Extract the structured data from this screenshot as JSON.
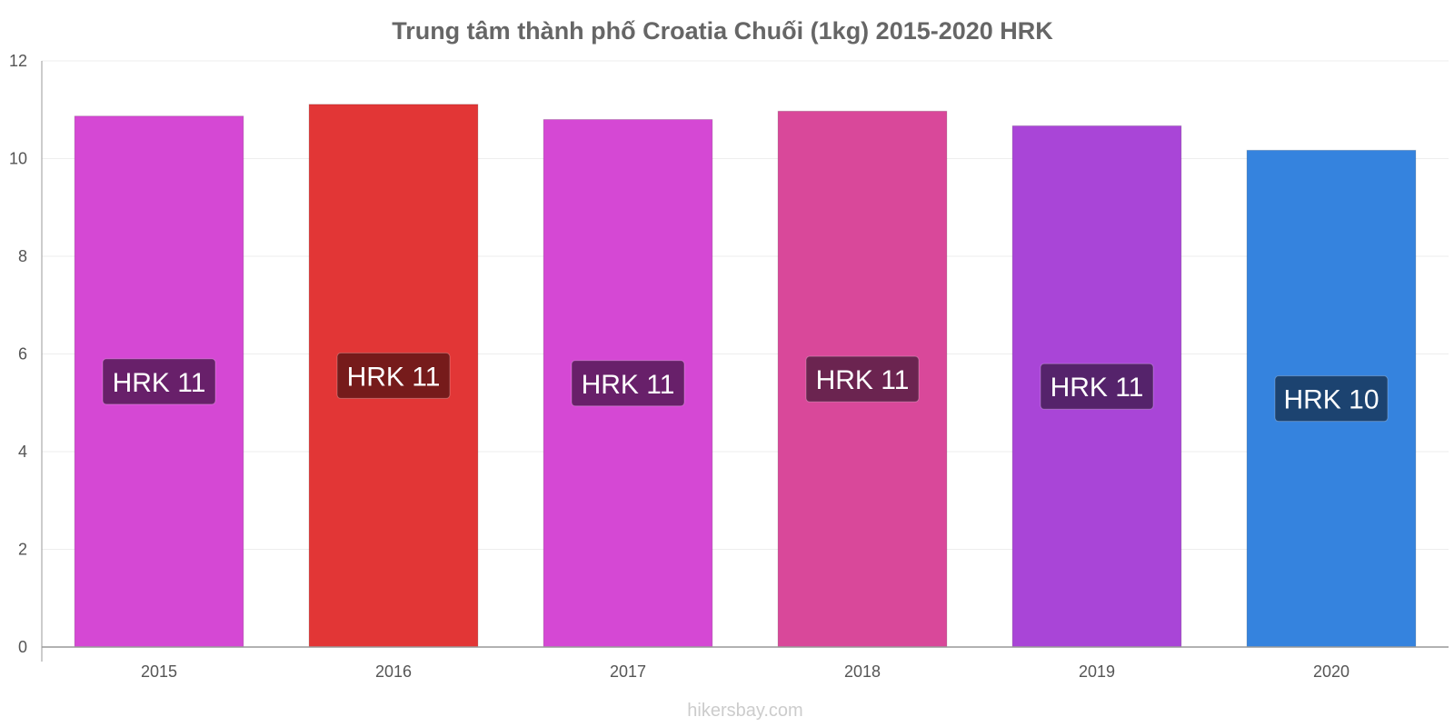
{
  "chart_data": {
    "type": "bar",
    "title": "Trung tâm thành phố Croatia Chuối (1kg) 2015-2020 HRK",
    "categories": [
      "2015",
      "2016",
      "2017",
      "2018",
      "2019",
      "2020"
    ],
    "values": [
      10.87,
      11.11,
      10.8,
      10.97,
      10.67,
      10.17
    ],
    "value_labels": [
      "HRK 11",
      "HRK 11",
      "HRK 11",
      "HRK 11",
      "HRK 11",
      "HRK 10"
    ],
    "bar_colors": [
      "#d548d4",
      "#e23636",
      "#d548d4",
      "#d9489a",
      "#a945d7",
      "#3583de"
    ],
    "label_colors": [
      "#68206a",
      "#761b1b",
      "#68206a",
      "#6b2450",
      "#55236b",
      "#1c4370"
    ],
    "ylim": [
      0,
      12
    ],
    "yticks": [
      0,
      2,
      4,
      6,
      8,
      10,
      12
    ],
    "xlabel": "",
    "ylabel": "",
    "grid": true,
    "legend": "none"
  },
  "source": "hikersbay.com"
}
